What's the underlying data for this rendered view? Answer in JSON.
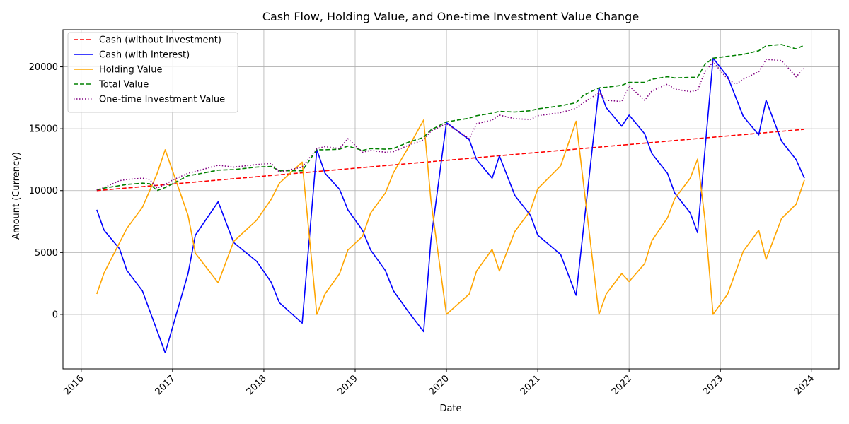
{
  "chart_data": {
    "type": "line",
    "title": "Cash Flow, Holding Value, and One-time Investment Value Change",
    "xlabel": "Date",
    "ylabel": "Amount (Currency)",
    "xlim": [
      2015.8,
      2024.3
    ],
    "ylim": [
      -4400,
      23000
    ],
    "x_ticks": [
      2016,
      2017,
      2018,
      2019,
      2020,
      2021,
      2022,
      2023,
      2024
    ],
    "y_ticks": [
      0,
      5000,
      10000,
      15000,
      20000
    ],
    "grid": true,
    "legend_position": "top-left",
    "series": [
      {
        "name": "Cash (without Investment)",
        "color": "#ff0000",
        "style": "dashed",
        "x": [
          2016.17,
          2023.92
        ],
        "y": [
          10000,
          14950
        ]
      },
      {
        "name": "Cash (with Interest)",
        "color": "#0000ff",
        "style": "solid",
        "x": [
          2016.17,
          2016.25,
          2016.42,
          2016.5,
          2016.67,
          2016.92,
          2017.17,
          2017.25,
          2017.5,
          2017.67,
          2017.92,
          2018.08,
          2018.17,
          2018.42,
          2018.58,
          2018.67,
          2018.83,
          2018.92,
          2019.08,
          2019.17,
          2019.33,
          2019.42,
          2019.58,
          2019.75,
          2019.83,
          2020.0,
          2020.25,
          2020.33,
          2020.5,
          2020.58,
          2020.75,
          2020.92,
          2021.0,
          2021.25,
          2021.42,
          2021.67,
          2021.75,
          2021.92,
          2022.0,
          2022.17,
          2022.25,
          2022.42,
          2022.5,
          2022.67,
          2022.75,
          2022.92,
          2023.08,
          2023.25,
          2023.42,
          2023.5,
          2023.67,
          2023.83,
          2023.92
        ],
        "y": [
          8450,
          6800,
          5300,
          3550,
          1900,
          -3100,
          3300,
          6400,
          9100,
          5800,
          4300,
          2600,
          950,
          -700,
          13300,
          11400,
          10100,
          8450,
          6800,
          5200,
          3550,
          1900,
          250,
          -1400,
          6000,
          15500,
          14100,
          12500,
          11000,
          12800,
          9600,
          8000,
          6400,
          4850,
          1550,
          18300,
          16700,
          15200,
          16100,
          14600,
          13000,
          11400,
          9800,
          8200,
          6600,
          20700,
          19200,
          16000,
          14500,
          17300,
          14000,
          12500,
          11000
        ]
      },
      {
        "name": "Holding Value",
        "color": "#ffa500",
        "style": "solid",
        "x": [
          2016.17,
          2016.25,
          2016.5,
          2016.67,
          2016.83,
          2016.92,
          2017.17,
          2017.25,
          2017.5,
          2017.67,
          2017.92,
          2018.08,
          2018.17,
          2018.42,
          2018.58,
          2018.67,
          2018.83,
          2018.92,
          2019.08,
          2019.17,
          2019.33,
          2019.42,
          2019.58,
          2019.75,
          2019.83,
          2020.0,
          2020.25,
          2020.33,
          2020.5,
          2020.58,
          2020.75,
          2020.92,
          2021.0,
          2021.25,
          2021.42,
          2021.67,
          2021.75,
          2021.92,
          2022.0,
          2022.17,
          2022.25,
          2022.42,
          2022.5,
          2022.67,
          2022.75,
          2022.83,
          2022.92,
          2023.08,
          2023.25,
          2023.42,
          2023.5,
          2023.67,
          2023.83,
          2023.92
        ],
        "y": [
          1650,
          3350,
          6950,
          8650,
          11350,
          13300,
          8000,
          4950,
          2550,
          5900,
          7600,
          9300,
          10600,
          12300,
          0,
          1650,
          3300,
          5200,
          6300,
          8200,
          9800,
          11450,
          13450,
          15700,
          9200,
          0,
          1650,
          3500,
          5250,
          3500,
          6700,
          8400,
          10150,
          12000,
          15600,
          0,
          1650,
          3300,
          2650,
          4100,
          5950,
          7800,
          9350,
          11000,
          12550,
          7700,
          0,
          1650,
          5100,
          6800,
          4450,
          7750,
          8900,
          10850
        ]
      },
      {
        "name": "Total Value",
        "color": "#008000",
        "style": "dashed",
        "x": [
          2016.17,
          2016.25,
          2016.42,
          2016.5,
          2016.67,
          2016.75,
          2016.83,
          2016.92,
          2017.0,
          2017.17,
          2017.25,
          2017.5,
          2017.67,
          2017.92,
          2018.08,
          2018.17,
          2018.42,
          2018.58,
          2018.67,
          2018.83,
          2018.92,
          2019.08,
          2019.17,
          2019.33,
          2019.42,
          2019.58,
          2019.75,
          2019.83,
          2020.0,
          2020.25,
          2020.33,
          2020.5,
          2020.58,
          2020.75,
          2020.92,
          2021.0,
          2021.25,
          2021.42,
          2021.5,
          2021.67,
          2021.75,
          2021.92,
          2022.0,
          2022.17,
          2022.25,
          2022.42,
          2022.5,
          2022.67,
          2022.75,
          2022.83,
          2022.92,
          2023.08,
          2023.25,
          2023.42,
          2023.5,
          2023.67,
          2023.83,
          2023.92
        ],
        "y": [
          10050,
          10200,
          10400,
          10500,
          10600,
          10550,
          10000,
          10250,
          10550,
          11200,
          11300,
          11650,
          11700,
          11900,
          11950,
          11600,
          11600,
          13300,
          13300,
          13350,
          13600,
          13250,
          13400,
          13350,
          13400,
          13900,
          14300,
          14900,
          15550,
          15850,
          16050,
          16250,
          16400,
          16350,
          16450,
          16600,
          16850,
          17100,
          17700,
          18300,
          18350,
          18500,
          18750,
          18750,
          19000,
          19200,
          19100,
          19150,
          19150,
          20200,
          20700,
          20850,
          21000,
          21300,
          21700,
          21800,
          21450,
          21750
        ]
      },
      {
        "name": "One-time Investment Value",
        "color": "#800080",
        "style": "dotted",
        "x": [
          2016.17,
          2016.25,
          2016.42,
          2016.5,
          2016.67,
          2016.75,
          2016.83,
          2016.92,
          2017.0,
          2017.17,
          2017.25,
          2017.5,
          2017.67,
          2017.92,
          2018.08,
          2018.17,
          2018.42,
          2018.58,
          2018.67,
          2018.83,
          2018.92,
          2019.08,
          2019.17,
          2019.33,
          2019.42,
          2019.58,
          2019.75,
          2019.83,
          2020.0,
          2020.25,
          2020.33,
          2020.5,
          2020.58,
          2020.75,
          2020.92,
          2021.0,
          2021.25,
          2021.42,
          2021.5,
          2021.67,
          2021.75,
          2021.92,
          2022.0,
          2022.17,
          2022.25,
          2022.42,
          2022.5,
          2022.67,
          2022.75,
          2022.83,
          2022.92,
          2023.08,
          2023.17,
          2023.25,
          2023.42,
          2023.5,
          2023.67,
          2023.83,
          2023.92
        ],
        "y": [
          10050,
          10250,
          10800,
          10900,
          11000,
          10900,
          10200,
          10500,
          10850,
          11400,
          11550,
          12050,
          11900,
          12100,
          12200,
          11500,
          11900,
          13400,
          13550,
          13400,
          14200,
          13100,
          13250,
          13100,
          13150,
          13650,
          14100,
          14800,
          15400,
          14200,
          15400,
          15700,
          16100,
          15800,
          15750,
          16050,
          16300,
          16650,
          17100,
          17900,
          17300,
          17200,
          18450,
          17300,
          18050,
          18600,
          18200,
          18000,
          18100,
          19600,
          20400,
          19000,
          18600,
          19000,
          19600,
          20600,
          20500,
          19200,
          19900
        ]
      }
    ]
  }
}
